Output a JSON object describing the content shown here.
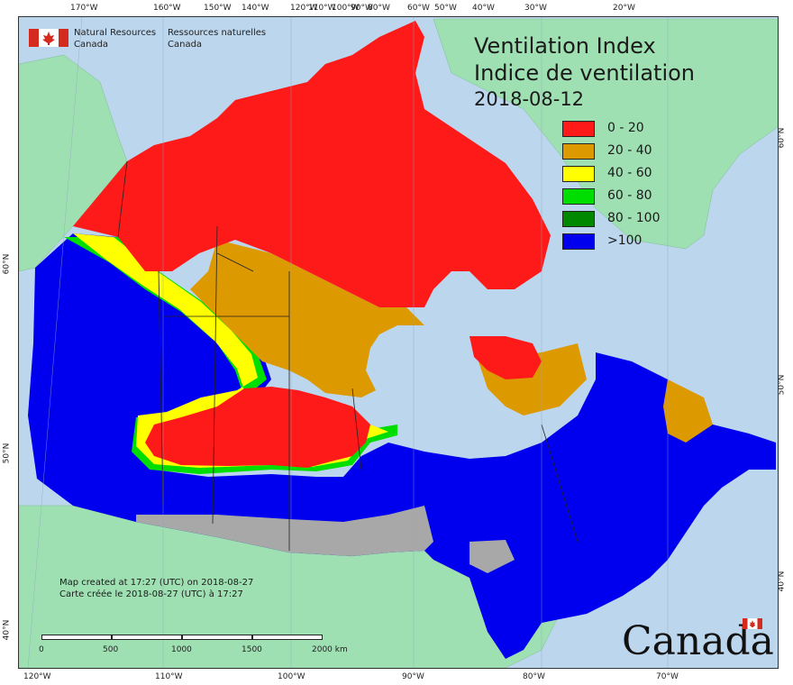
{
  "header": {
    "agency_en_line1": "Natural Resources",
    "agency_en_line2": "Canada",
    "agency_fr_line1": "Ressources naturelles",
    "agency_fr_line2": "Canada"
  },
  "title": {
    "en": "Ventilation Index",
    "fr": "Indice de ventilation",
    "date": "2018-08-12"
  },
  "legend": [
    {
      "label": "0 - 20",
      "color": "#ff1a1a"
    },
    {
      "label": "20 - 40",
      "color": "#dd9900"
    },
    {
      "label": "40 - 60",
      "color": "#ffff00"
    },
    {
      "label": "60 - 80",
      "color": "#00dd00"
    },
    {
      "label": "80 - 100",
      "color": "#008800"
    },
    {
      "label": ">100",
      "color": "#0000ee"
    }
  ],
  "credit": {
    "line1": "Map created at 17:27 (UTC) on 2018-08-27",
    "line2": "Carte créée le 2018-08-27 (UTC) à 17:27"
  },
  "scale": {
    "labels": [
      "0",
      "500",
      "1000",
      "1500",
      "2000 km"
    ]
  },
  "wordmark": "Canada",
  "graticule": {
    "top": [
      "170°W",
      "160°W",
      "150°W",
      "140°W",
      "120°W",
      "110°W",
      "100°W",
      "90°W",
      "80°W",
      "60°W",
      "50°W",
      "40°W",
      "30°W",
      "20°W"
    ],
    "bottom": [
      "120°W",
      "110°W",
      "100°W",
      "90°W",
      "80°W",
      "70°W"
    ],
    "left": [
      "60°N",
      "50°N",
      "40°N"
    ],
    "right": [
      "60°N",
      "50°N",
      "40°N"
    ]
  },
  "colors": {
    "ocean": "#bcd6ee",
    "foreign_land": "#9fe0b3",
    "no_data": "#a8a8a8"
  }
}
